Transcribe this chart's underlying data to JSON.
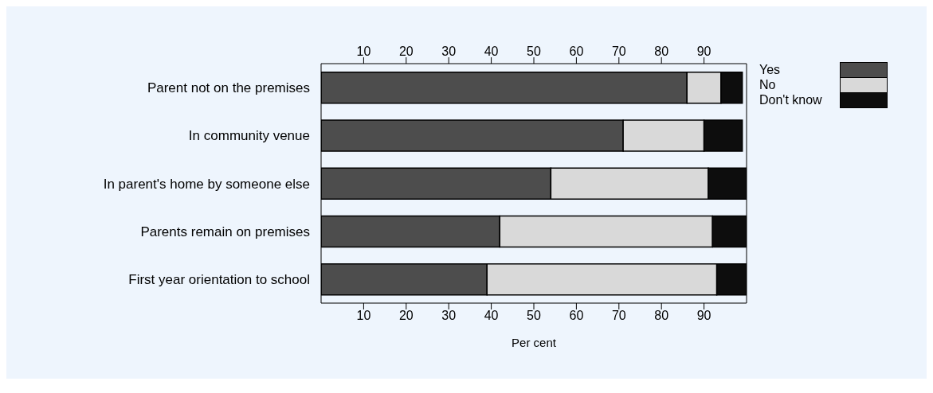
{
  "chart_data": {
    "type": "bar",
    "orientation": "horizontal",
    "stacked": true,
    "xlabel": "Per cent",
    "categories": [
      "Parent not on the premises",
      "In community venue",
      "In parent's home by someone else",
      "Parents remain on premises",
      "First year orientation to school"
    ],
    "series": [
      {
        "name": "Yes",
        "color": "#4d4d4d",
        "values": [
          86,
          71,
          54,
          42,
          39
        ]
      },
      {
        "name": "No",
        "color": "#d9d9d9",
        "values": [
          8,
          19,
          37,
          50,
          54
        ]
      },
      {
        "name": "Don't know",
        "color": "#0d0d0d",
        "values": [
          5,
          9,
          9,
          8,
          7
        ]
      }
    ],
    "xlim": [
      0,
      100
    ],
    "xticks": [
      10,
      20,
      30,
      40,
      50,
      60,
      70,
      80,
      90
    ],
    "x2lim": [
      0,
      100
    ],
    "x2ticks": [
      10,
      20,
      30,
      40,
      50,
      60,
      70,
      80,
      90
    ],
    "legend": "top right"
  }
}
